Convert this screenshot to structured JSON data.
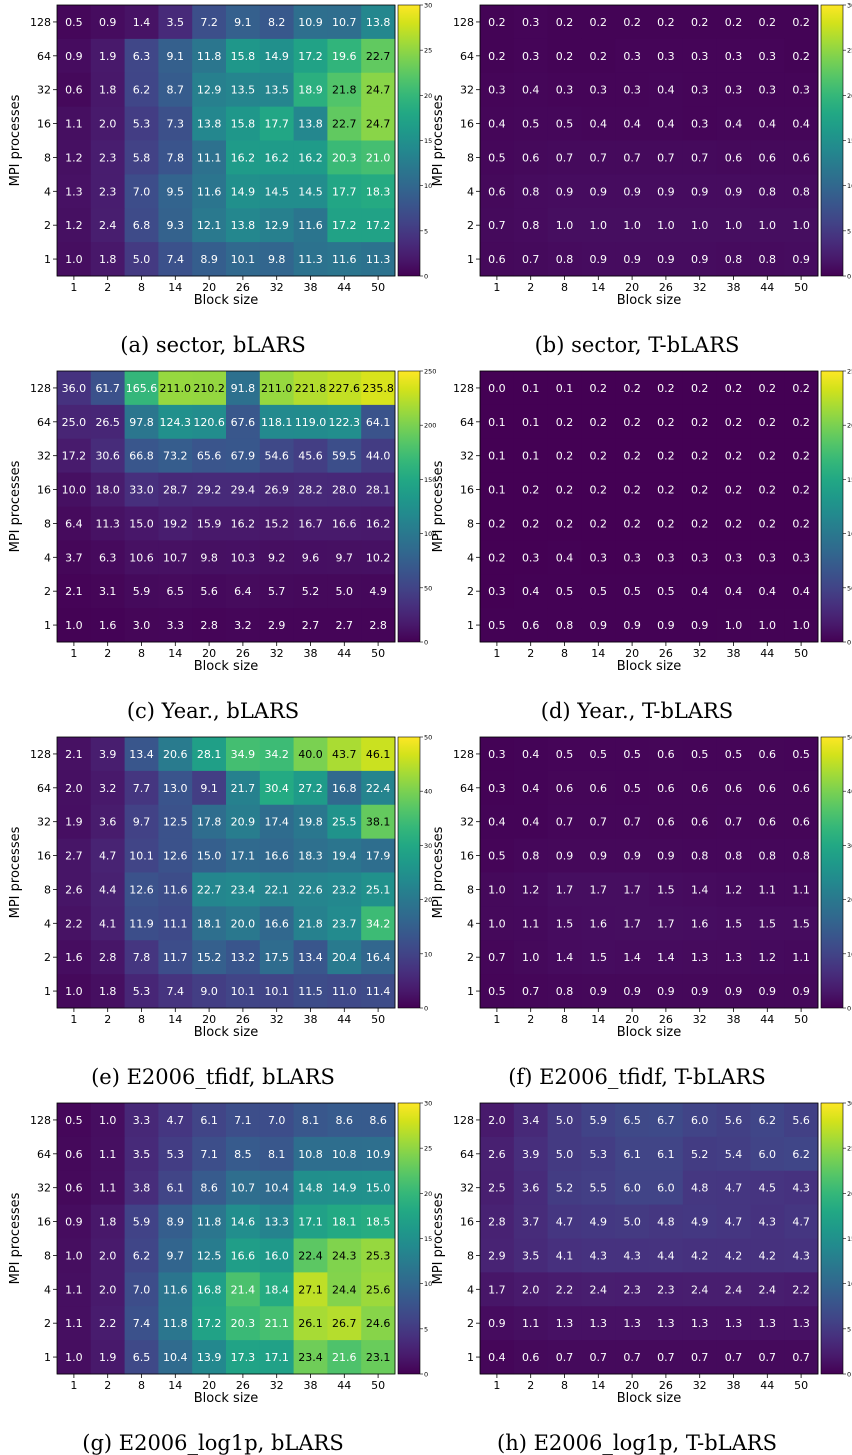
{
  "chart_data": [
    {
      "type": "heatmap",
      "caption": "(a) sector, bLARS",
      "xlabel": "Block size",
      "ylabel": "MPI processes",
      "x": [
        "1",
        "2",
        "8",
        "14",
        "20",
        "26",
        "32",
        "38",
        "44",
        "50"
      ],
      "y": [
        "128",
        "64",
        "32",
        "16",
        "8",
        "4",
        "2",
        "1"
      ],
      "colorbar": {
        "min": 0,
        "max": 30,
        "ticks": [
          0,
          5,
          10,
          15,
          20,
          25,
          30
        ]
      },
      "values": [
        [
          0.5,
          0.9,
          1.4,
          3.5,
          7.2,
          9.1,
          8.2,
          10.9,
          10.7,
          13.8
        ],
        [
          0.9,
          1.9,
          6.3,
          9.1,
          11.8,
          15.8,
          14.9,
          17.2,
          19.6,
          22.7
        ],
        [
          0.6,
          1.8,
          6.2,
          8.7,
          12.9,
          13.5,
          13.5,
          18.9,
          21.8,
          24.7
        ],
        [
          1.1,
          2.0,
          5.3,
          7.3,
          13.8,
          15.8,
          17.7,
          13.8,
          22.7,
          24.7
        ],
        [
          1.2,
          2.3,
          5.8,
          7.8,
          11.1,
          16.2,
          16.2,
          16.2,
          20.3,
          21.0
        ],
        [
          1.3,
          2.3,
          7.0,
          9.5,
          11.6,
          14.9,
          14.5,
          14.5,
          17.7,
          18.3
        ],
        [
          1.2,
          2.4,
          6.8,
          9.3,
          12.1,
          13.8,
          12.9,
          11.6,
          17.2,
          17.2
        ],
        [
          1.0,
          1.8,
          5.0,
          7.4,
          8.9,
          10.1,
          9.8,
          11.3,
          11.6,
          11.3
        ]
      ]
    },
    {
      "type": "heatmap",
      "caption": "(b) sector, T-bLARS",
      "xlabel": "Block size",
      "ylabel": "MPI processes",
      "x": [
        "1",
        "2",
        "8",
        "14",
        "20",
        "26",
        "32",
        "38",
        "44",
        "50"
      ],
      "y": [
        "128",
        "64",
        "32",
        "16",
        "8",
        "4",
        "2",
        "1"
      ],
      "colorbar": {
        "min": 0,
        "max": 30,
        "ticks": [
          0,
          5,
          10,
          15,
          20,
          25,
          30
        ]
      },
      "values": [
        [
          0.2,
          0.3,
          0.2,
          0.2,
          0.2,
          0.2,
          0.2,
          0.2,
          0.2,
          0.2
        ],
        [
          0.2,
          0.3,
          0.2,
          0.2,
          0.3,
          0.3,
          0.3,
          0.3,
          0.3,
          0.2
        ],
        [
          0.3,
          0.4,
          0.3,
          0.3,
          0.3,
          0.4,
          0.3,
          0.3,
          0.3,
          0.3
        ],
        [
          0.4,
          0.5,
          0.5,
          0.4,
          0.4,
          0.4,
          0.3,
          0.4,
          0.4,
          0.4
        ],
        [
          0.5,
          0.6,
          0.7,
          0.7,
          0.7,
          0.7,
          0.7,
          0.6,
          0.6,
          0.6
        ],
        [
          0.6,
          0.8,
          0.9,
          0.9,
          0.9,
          0.9,
          0.9,
          0.9,
          0.8,
          0.8
        ],
        [
          0.7,
          0.8,
          1.0,
          1.0,
          1.0,
          1.0,
          1.0,
          1.0,
          1.0,
          1.0
        ],
        [
          0.6,
          0.7,
          0.8,
          0.9,
          0.9,
          0.9,
          0.9,
          0.8,
          0.8,
          0.9
        ]
      ]
    },
    {
      "type": "heatmap",
      "caption": "(c) Year., bLARS",
      "xlabel": "Block size",
      "ylabel": "MPI processes",
      "x": [
        "1",
        "2",
        "8",
        "14",
        "20",
        "26",
        "32",
        "38",
        "44",
        "50"
      ],
      "y": [
        "128",
        "64",
        "32",
        "16",
        "8",
        "4",
        "2",
        "1"
      ],
      "colorbar": {
        "min": 0,
        "max": 250,
        "ticks": [
          0,
          50,
          100,
          150,
          200,
          250
        ]
      },
      "values": [
        [
          36.0,
          61.7,
          165.6,
          211.0,
          210.2,
          91.8,
          211.0,
          221.8,
          227.6,
          235.8
        ],
        [
          25.0,
          26.5,
          97.8,
          124.3,
          120.6,
          67.6,
          118.1,
          119.0,
          122.3,
          64.1
        ],
        [
          17.2,
          30.6,
          66.8,
          73.2,
          65.6,
          67.9,
          54.6,
          45.6,
          59.5,
          44.0
        ],
        [
          10.0,
          18.0,
          33.0,
          28.7,
          29.2,
          29.4,
          26.9,
          28.2,
          28.0,
          28.1
        ],
        [
          6.4,
          11.3,
          15.0,
          19.2,
          15.9,
          16.2,
          15.2,
          16.7,
          16.6,
          16.2
        ],
        [
          3.7,
          6.3,
          10.6,
          10.7,
          9.8,
          10.3,
          9.2,
          9.6,
          9.7,
          10.2
        ],
        [
          2.1,
          3.1,
          5.9,
          6.5,
          5.6,
          6.4,
          5.7,
          5.2,
          5.0,
          4.9
        ],
        [
          1.0,
          1.6,
          3.0,
          3.3,
          2.8,
          3.2,
          2.9,
          2.7,
          2.7,
          2.8
        ]
      ]
    },
    {
      "type": "heatmap",
      "caption": "(d) Year., T-bLARS",
      "xlabel": "Block size",
      "ylabel": "MPI processes",
      "x": [
        "1",
        "2",
        "8",
        "14",
        "20",
        "26",
        "32",
        "38",
        "44",
        "50"
      ],
      "y": [
        "128",
        "64",
        "32",
        "16",
        "8",
        "4",
        "2",
        "1"
      ],
      "colorbar": {
        "min": 0,
        "max": 250,
        "ticks": [
          0,
          50,
          100,
          150,
          200,
          250
        ]
      },
      "values": [
        [
          0.0,
          0.1,
          0.1,
          0.2,
          0.2,
          0.2,
          0.2,
          0.2,
          0.2,
          0.2
        ],
        [
          0.1,
          0.1,
          0.2,
          0.2,
          0.2,
          0.2,
          0.2,
          0.2,
          0.2,
          0.2
        ],
        [
          0.1,
          0.1,
          0.2,
          0.2,
          0.2,
          0.2,
          0.2,
          0.2,
          0.2,
          0.2
        ],
        [
          0.1,
          0.2,
          0.2,
          0.2,
          0.2,
          0.2,
          0.2,
          0.2,
          0.2,
          0.2
        ],
        [
          0.2,
          0.2,
          0.2,
          0.2,
          0.2,
          0.2,
          0.2,
          0.2,
          0.2,
          0.2
        ],
        [
          0.2,
          0.3,
          0.4,
          0.3,
          0.3,
          0.3,
          0.3,
          0.3,
          0.3,
          0.3
        ],
        [
          0.3,
          0.4,
          0.5,
          0.5,
          0.5,
          0.5,
          0.4,
          0.4,
          0.4,
          0.4
        ],
        [
          0.5,
          0.6,
          0.8,
          0.9,
          0.9,
          0.9,
          0.9,
          1.0,
          1.0,
          1.0
        ]
      ]
    },
    {
      "type": "heatmap",
      "caption": "(e) E2006_tfidf, bLARS",
      "xlabel": "Block size",
      "ylabel": "MPI processes",
      "x": [
        "1",
        "2",
        "8",
        "14",
        "20",
        "26",
        "32",
        "38",
        "44",
        "50"
      ],
      "y": [
        "128",
        "64",
        "32",
        "16",
        "8",
        "4",
        "2",
        "1"
      ],
      "colorbar": {
        "min": 0,
        "max": 50,
        "ticks": [
          0,
          10,
          20,
          30,
          40,
          50
        ]
      },
      "values": [
        [
          2.1,
          3.9,
          13.4,
          20.6,
          28.1,
          34.9,
          34.2,
          40.0,
          43.7,
          46.1
        ],
        [
          2.0,
          3.2,
          7.7,
          13.0,
          9.1,
          21.7,
          30.4,
          27.2,
          16.8,
          22.4
        ],
        [
          1.9,
          3.6,
          9.7,
          12.5,
          17.8,
          20.9,
          17.4,
          19.8,
          25.5,
          38.1
        ],
        [
          2.7,
          4.7,
          10.1,
          12.6,
          15.0,
          17.1,
          16.6,
          18.3,
          19.4,
          17.9
        ],
        [
          2.6,
          4.4,
          12.6,
          11.6,
          22.7,
          23.4,
          22.1,
          22.6,
          23.2,
          25.1
        ],
        [
          2.2,
          4.1,
          11.9,
          11.1,
          18.1,
          20.0,
          16.6,
          21.8,
          23.7,
          34.2
        ],
        [
          1.6,
          2.8,
          7.8,
          11.7,
          15.2,
          13.2,
          17.5,
          13.4,
          20.4,
          16.4
        ],
        [
          1.0,
          1.8,
          5.3,
          7.4,
          9.0,
          10.1,
          10.1,
          11.5,
          11.0,
          11.4
        ]
      ]
    },
    {
      "type": "heatmap",
      "caption": "(f) E2006_tfidf, T-bLARS",
      "xlabel": "Block size",
      "ylabel": "MPI processes",
      "x": [
        "1",
        "2",
        "8",
        "14",
        "20",
        "26",
        "32",
        "38",
        "44",
        "50"
      ],
      "y": [
        "128",
        "64",
        "32",
        "16",
        "8",
        "4",
        "2",
        "1"
      ],
      "colorbar": {
        "min": 0,
        "max": 50,
        "ticks": [
          0,
          10,
          20,
          30,
          40,
          50
        ]
      },
      "values": [
        [
          0.3,
          0.4,
          0.5,
          0.5,
          0.5,
          0.6,
          0.5,
          0.5,
          0.6,
          0.5
        ],
        [
          0.3,
          0.4,
          0.6,
          0.6,
          0.5,
          0.6,
          0.6,
          0.6,
          0.6,
          0.6
        ],
        [
          0.4,
          0.4,
          0.7,
          0.7,
          0.7,
          0.6,
          0.6,
          0.7,
          0.6,
          0.6
        ],
        [
          0.5,
          0.8,
          0.9,
          0.9,
          0.9,
          0.9,
          0.8,
          0.8,
          0.8,
          0.8
        ],
        [
          1.0,
          1.2,
          1.7,
          1.7,
          1.7,
          1.5,
          1.4,
          1.2,
          1.1,
          1.1
        ],
        [
          1.0,
          1.1,
          1.5,
          1.6,
          1.7,
          1.7,
          1.6,
          1.5,
          1.5,
          1.5
        ],
        [
          0.7,
          1.0,
          1.4,
          1.5,
          1.4,
          1.4,
          1.3,
          1.3,
          1.2,
          1.1
        ],
        [
          0.5,
          0.7,
          0.8,
          0.9,
          0.9,
          0.9,
          0.9,
          0.9,
          0.9,
          0.9
        ]
      ]
    },
    {
      "type": "heatmap",
      "caption": "(g) E2006_log1p, bLARS",
      "xlabel": "Block size",
      "ylabel": "MPI processes",
      "x": [
        "1",
        "2",
        "8",
        "14",
        "20",
        "26",
        "32",
        "38",
        "44",
        "50"
      ],
      "y": [
        "128",
        "64",
        "32",
        "16",
        "8",
        "4",
        "2",
        "1"
      ],
      "colorbar": {
        "min": 0,
        "max": 30,
        "ticks": [
          0,
          5,
          10,
          15,
          20,
          25,
          30
        ]
      },
      "values": [
        [
          0.5,
          1.0,
          3.3,
          4.7,
          6.1,
          7.1,
          7.0,
          8.1,
          8.6,
          8.6
        ],
        [
          0.6,
          1.1,
          3.5,
          5.3,
          7.1,
          8.5,
          8.1,
          10.8,
          10.8,
          10.9
        ],
        [
          0.6,
          1.1,
          3.8,
          6.1,
          8.6,
          10.7,
          10.4,
          14.8,
          14.9,
          15.0
        ],
        [
          0.9,
          1.8,
          5.9,
          8.9,
          11.8,
          14.6,
          13.3,
          17.1,
          18.1,
          18.5
        ],
        [
          1.0,
          2.0,
          6.2,
          9.7,
          12.5,
          16.6,
          16.0,
          22.4,
          24.3,
          25.3
        ],
        [
          1.1,
          2.0,
          7.0,
          11.6,
          16.8,
          21.4,
          18.4,
          27.1,
          24.4,
          25.6
        ],
        [
          1.1,
          2.2,
          7.4,
          11.8,
          17.2,
          20.3,
          21.1,
          26.1,
          26.7,
          24.6
        ],
        [
          1.0,
          1.9,
          6.5,
          10.4,
          13.9,
          17.3,
          17.1,
          23.4,
          21.6,
          23.1
        ]
      ]
    },
    {
      "type": "heatmap",
      "caption": "(h) E2006_log1p, T-bLARS",
      "xlabel": "Block size",
      "ylabel": "MPI processes",
      "x": [
        "1",
        "2",
        "8",
        "14",
        "20",
        "26",
        "32",
        "38",
        "44",
        "50"
      ],
      "y": [
        "128",
        "64",
        "32",
        "16",
        "8",
        "4",
        "2",
        "1"
      ],
      "colorbar": {
        "min": 0,
        "max": 30,
        "ticks": [
          0,
          5,
          10,
          15,
          20,
          25,
          30
        ]
      },
      "values": [
        [
          2.0,
          3.4,
          5.0,
          5.9,
          6.5,
          6.7,
          6.0,
          5.6,
          6.2,
          5.6
        ],
        [
          2.6,
          3.9,
          5.0,
          5.3,
          6.1,
          6.1,
          5.2,
          5.4,
          6.0,
          6.2
        ],
        [
          2.5,
          3.6,
          5.2,
          5.5,
          6.0,
          6.0,
          4.8,
          4.7,
          4.5,
          4.3
        ],
        [
          2.8,
          3.7,
          4.7,
          4.9,
          5.0,
          4.8,
          4.9,
          4.7,
          4.3,
          4.7
        ],
        [
          2.9,
          3.5,
          4.1,
          4.3,
          4.3,
          4.4,
          4.2,
          4.2,
          4.2,
          4.3
        ],
        [
          1.7,
          2.0,
          2.2,
          2.4,
          2.3,
          2.3,
          2.4,
          2.4,
          2.4,
          2.2
        ],
        [
          0.9,
          1.1,
          1.3,
          1.3,
          1.3,
          1.3,
          1.3,
          1.3,
          1.3,
          1.3
        ],
        [
          0.4,
          0.6,
          0.7,
          0.7,
          0.7,
          0.7,
          0.7,
          0.7,
          0.7,
          0.7
        ]
      ]
    }
  ]
}
